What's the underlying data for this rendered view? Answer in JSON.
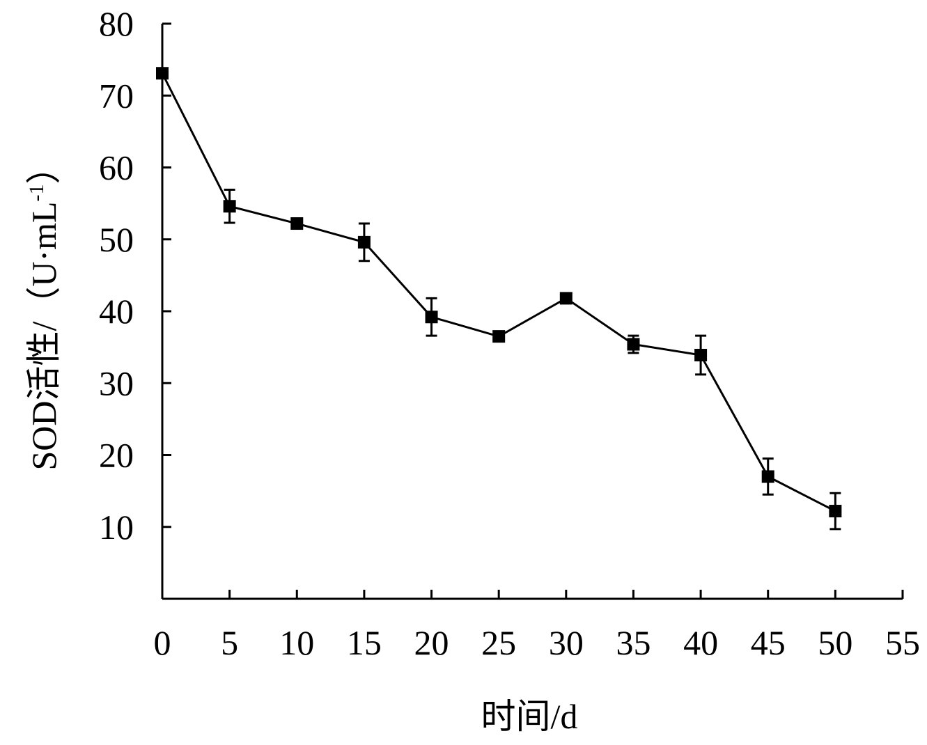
{
  "chart_data": {
    "type": "line",
    "xlabel": "时间/d",
    "ylabel_main": "SOD活性/（U·mL",
    "ylabel_sup": "-1",
    "ylabel_close": "）",
    "xlim": [
      0,
      55
    ],
    "ylim": [
      0,
      80
    ],
    "x_ticks": [
      0,
      5,
      10,
      15,
      20,
      25,
      30,
      35,
      40,
      45,
      50,
      55
    ],
    "y_ticks": [
      10,
      20,
      30,
      40,
      50,
      60,
      70,
      80
    ],
    "grid": false,
    "marker": "square",
    "color": "#000000",
    "series": [
      {
        "x": [
          0,
          5,
          10,
          15,
          20,
          25,
          30,
          35,
          40,
          45,
          50
        ],
        "y": [
          73.1,
          54.6,
          52.2,
          49.6,
          39.2,
          36.5,
          41.8,
          35.4,
          33.9,
          17.0,
          12.2
        ],
        "error": [
          0.0,
          2.3,
          0.0,
          2.6,
          2.6,
          0.0,
          0.0,
          1.2,
          2.7,
          2.5,
          2.5
        ]
      }
    ]
  }
}
